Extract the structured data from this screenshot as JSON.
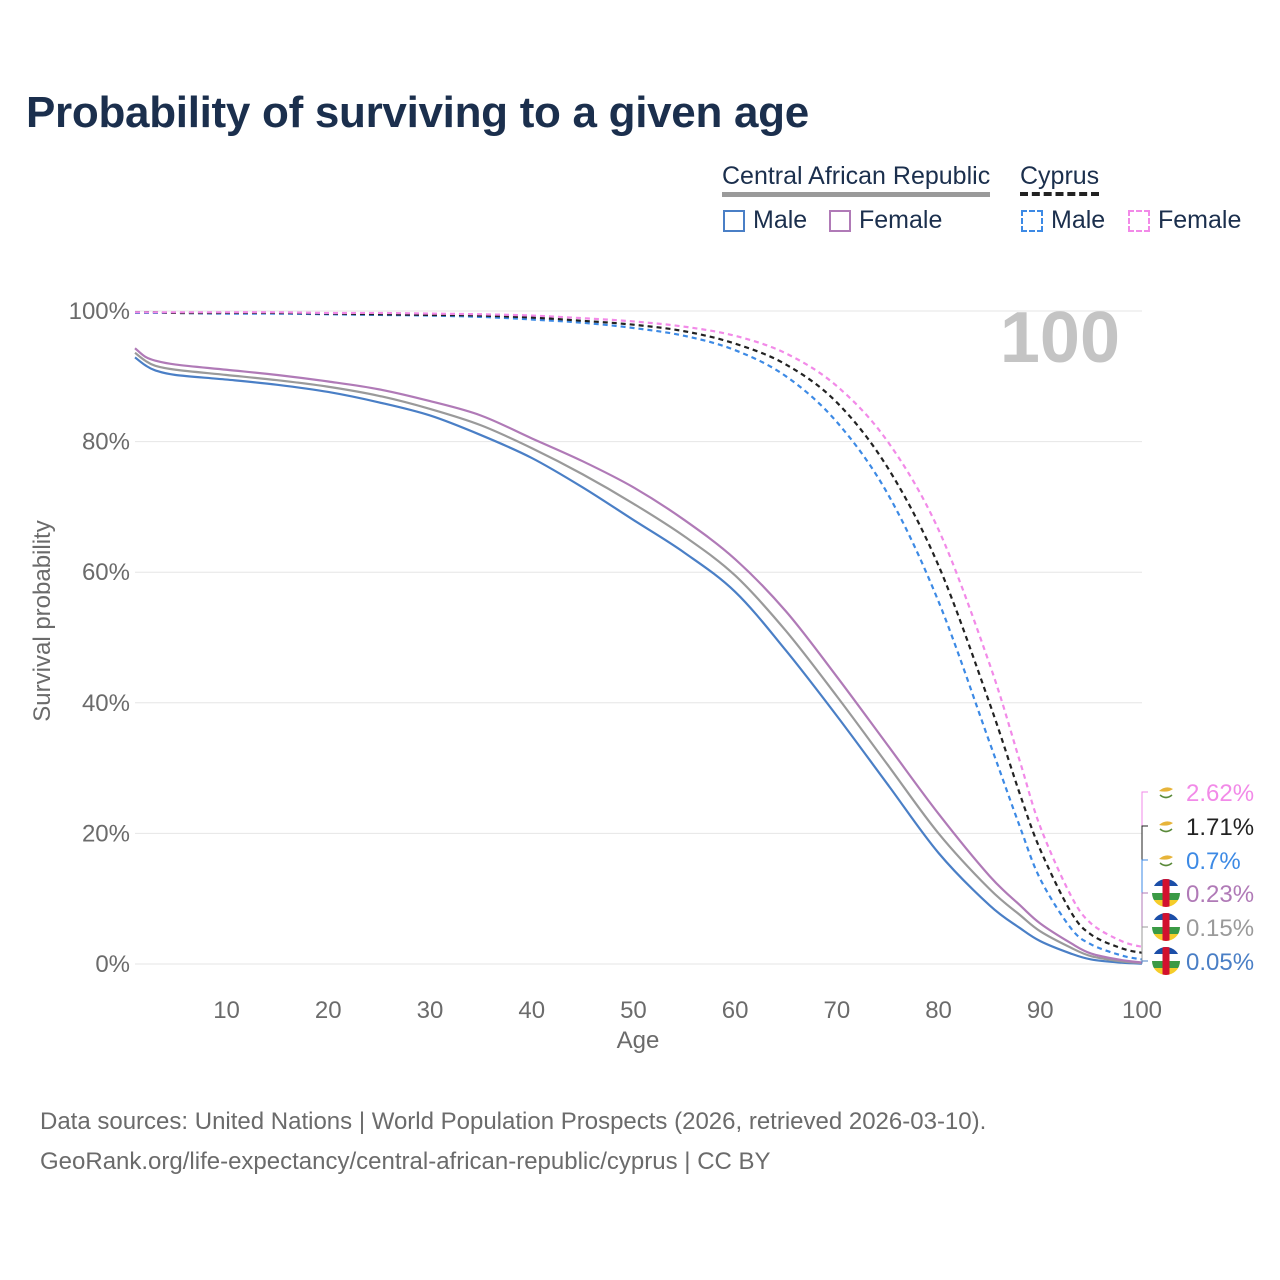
{
  "title": "Probability of surviving to a given age",
  "legend": {
    "group1": "Central African Republic",
    "group2": "Cyprus",
    "male": "Male",
    "female": "Female"
  },
  "footer": {
    "line1": "Data sources: United Nations | World Population Prospects (2026, retrieved 2026-03-10).",
    "line2": "GeoRank.org/life-expectancy/central-african-republic/cyprus | CC BY"
  },
  "colors": {
    "car_male": "#4a7fc6",
    "car_female": "#b07ab7",
    "car_both": "#9a9a9a",
    "cyp_male": "#3d8ae5",
    "cyp_female": "#f28ae8",
    "cyp_both": "#222222",
    "grid": "#e6e6e6",
    "axis_text": "#6b6b6b",
    "age_label": "#c4c4c4"
  },
  "chart_data": {
    "type": "line",
    "title": "Probability of surviving to a given age",
    "xlabel": "Age",
    "ylabel": "Survival probability",
    "xlim": [
      1,
      100
    ],
    "ylim": [
      0,
      100
    ],
    "xticks": [
      10,
      20,
      30,
      40,
      50,
      60,
      70,
      80,
      90,
      100
    ],
    "yticks": [
      0,
      20,
      40,
      60,
      80,
      100
    ],
    "ytick_labels": [
      "0%",
      "20%",
      "40%",
      "60%",
      "80%",
      "100%"
    ],
    "current_age_label": "100",
    "ages": [
      1,
      2,
      3,
      5,
      10,
      15,
      20,
      25,
      30,
      35,
      40,
      45,
      50,
      55,
      60,
      65,
      70,
      75,
      80,
      85,
      88,
      90,
      93,
      95,
      98,
      100
    ],
    "series": [
      {
        "id": "cyp_female",
        "name": "Cyprus Female",
        "country": "Cyprus",
        "sex": "Female",
        "style": "dashed",
        "values": [
          99.8,
          99.8,
          99.8,
          99.8,
          99.8,
          99.8,
          99.7,
          99.7,
          99.6,
          99.5,
          99.3,
          98.9,
          98.4,
          97.6,
          96.2,
          93.5,
          88.5,
          80.0,
          66.5,
          46.0,
          31.0,
          21.0,
          10.5,
          6.2,
          3.5,
          2.62
        ],
        "end_label": "2.62%"
      },
      {
        "id": "cyp_both",
        "name": "Cyprus",
        "country": "Cyprus",
        "sex": "Both",
        "style": "dashed",
        "values": [
          99.8,
          99.8,
          99.8,
          99.7,
          99.7,
          99.7,
          99.6,
          99.5,
          99.4,
          99.3,
          99.0,
          98.5,
          97.9,
          96.9,
          95.0,
          91.8,
          86.0,
          76.0,
          61.0,
          40.0,
          26.0,
          17.5,
          8.0,
          4.5,
          2.4,
          1.71
        ],
        "end_label": "1.71%"
      },
      {
        "id": "cyp_male",
        "name": "Cyprus Male",
        "country": "Cyprus",
        "sex": "Male",
        "style": "dashed",
        "values": [
          99.7,
          99.7,
          99.7,
          99.7,
          99.6,
          99.6,
          99.5,
          99.4,
          99.3,
          99.1,
          98.7,
          98.2,
          97.4,
          96.2,
          94.0,
          90.0,
          83.0,
          72.0,
          55.5,
          34.0,
          21.0,
          13.0,
          5.5,
          3.0,
          1.3,
          0.7
        ],
        "end_label": "0.7%"
      },
      {
        "id": "car_female",
        "name": "Central African Republic Female",
        "country": "Central African Republic",
        "sex": "Female",
        "style": "solid",
        "values": [
          94.3,
          93.0,
          92.4,
          91.8,
          91.0,
          90.2,
          89.2,
          88.0,
          86.2,
          84.0,
          80.5,
          77.0,
          73.0,
          68.0,
          62.0,
          54.0,
          44.0,
          33.5,
          23.0,
          13.5,
          9.0,
          6.2,
          3.2,
          1.6,
          0.6,
          0.23
        ],
        "end_label": "0.23%"
      },
      {
        "id": "car_both",
        "name": "Central African Republic",
        "country": "Central African Republic",
        "sex": "Both",
        "style": "solid",
        "values": [
          93.6,
          92.4,
          91.6,
          91.0,
          90.2,
          89.4,
          88.4,
          87.0,
          85.0,
          82.5,
          79.0,
          75.0,
          70.5,
          65.5,
          59.5,
          51.0,
          41.0,
          30.5,
          20.0,
          11.5,
          7.5,
          5.0,
          2.5,
          1.2,
          0.4,
          0.15
        ],
        "end_label": "0.15%"
      },
      {
        "id": "car_male",
        "name": "Central African Republic Male",
        "country": "Central African Republic",
        "sex": "Male",
        "style": "solid",
        "values": [
          92.9,
          91.7,
          90.9,
          90.2,
          89.5,
          88.7,
          87.6,
          86.0,
          84.0,
          81.0,
          77.5,
          73.0,
          68.0,
          63.0,
          57.0,
          48.0,
          38.0,
          27.5,
          17.0,
          9.0,
          5.5,
          3.5,
          1.6,
          0.7,
          0.2,
          0.05
        ],
        "end_label": "0.05%"
      }
    ]
  }
}
